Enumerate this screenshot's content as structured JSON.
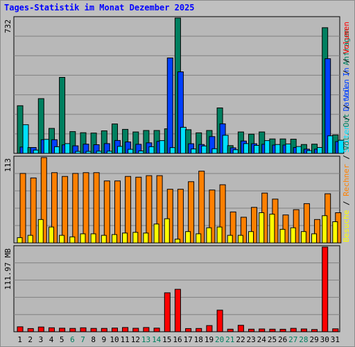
{
  "title": "Tages-Statistik im Monat Dezember 2025",
  "colors": {
    "anfragen": "#008060",
    "dateien": "#0040ff",
    "seiten": "#00e0ff",
    "besuche": "#ffff00",
    "rechner": "#ff8000",
    "volumen": "#ff0000",
    "weekend_day_label": "#008060",
    "weekday_label": "#000000",
    "label_slash": "#000000"
  },
  "chart_data": [
    {
      "type": "bar",
      "panel": "top",
      "ytick_label": "732",
      "ylim": [
        0,
        732
      ],
      "categories": [
        "1",
        "2",
        "3",
        "4",
        "5",
        "6",
        "7",
        "8",
        "9",
        "10",
        "11",
        "12",
        "13",
        "14",
        "15",
        "16",
        "17",
        "18",
        "19",
        "20",
        "21",
        "22",
        "23",
        "24",
        "25",
        "26",
        "27",
        "28",
        "29",
        "30",
        "31"
      ],
      "weekend_days": [
        "6",
        "7",
        "13",
        "14",
        "20",
        "21",
        "27",
        "28"
      ],
      "series_labels": [
        "Anfragen",
        "Dateien",
        "Seiten"
      ],
      "series": [
        {
          "name": "Anfragen",
          "values": [
            258,
            32,
            296,
            135,
            411,
            118,
            112,
            110,
            122,
            159,
            130,
            116,
            124,
            124,
            133,
            732,
            128,
            111,
            124,
            246,
            42,
            116,
            104,
            116,
            78,
            78,
            77,
            48,
            50,
            680,
            100
          ]
        },
        {
          "name": "Dateien",
          "values": [
            34,
            32,
            74,
            74,
            46,
            41,
            50,
            47,
            53,
            70,
            62,
            49,
            57,
            65,
            516,
            441,
            52,
            48,
            91,
            160,
            30,
            67,
            52,
            49,
            45,
            45,
            32,
            23,
            23,
            512,
            64
          ]
        },
        {
          "name": "Seiten",
          "values": [
            155,
            18,
            76,
            36,
            53,
            11,
            11,
            12,
            12,
            38,
            22,
            13,
            36,
            69,
            31,
            141,
            24,
            40,
            25,
            98,
            20,
            53,
            43,
            69,
            48,
            51,
            37,
            15,
            32,
            95,
            71
          ]
        }
      ]
    },
    {
      "type": "bar",
      "panel": "middle",
      "ytick_label": "113",
      "ylim": [
        0,
        113
      ],
      "series_labels": [
        "Besuche",
        "Rechner"
      ],
      "series": [
        {
          "name": "Besuche",
          "values": [
            7,
            10,
            31,
            21,
            10,
            8,
            12,
            12,
            10,
            11,
            13,
            14,
            13,
            25,
            32,
            5,
            15,
            12,
            20,
            21,
            10,
            10,
            15,
            40,
            38,
            18,
            20,
            15,
            12,
            36,
            28
          ]
        },
        {
          "name": "Rechner",
          "values": [
            92,
            86,
            113,
            93,
            88,
            92,
            93,
            93,
            82,
            82,
            88,
            87,
            89,
            89,
            71,
            71,
            81,
            95,
            70,
            77,
            41,
            34,
            47,
            66,
            58,
            37,
            44,
            52,
            31,
            65,
            40
          ]
        }
      ]
    },
    {
      "type": "bar",
      "panel": "bottom",
      "ytick_label": "111.97 MB",
      "ylim": [
        0,
        111.97
      ],
      "series_labels": [
        "Volumen",
        "Vol. In",
        "Vol. Out"
      ],
      "series": [
        {
          "name": "Volumen",
          "values": [
            6.5,
            4.2,
            6.2,
            5.2,
            4.7,
            4.4,
            5.2,
            4.4,
            4.4,
            4.9,
            5.6,
            4.6,
            5.6,
            4.8,
            51.5,
            56.1,
            4.2,
            4.3,
            8.2,
            28.5,
            3.4,
            8.5,
            3.4,
            3.7,
            3.4,
            3.3,
            4.5,
            3.7,
            2.9,
            111.97,
            3.9
          ]
        }
      ]
    }
  ]
}
